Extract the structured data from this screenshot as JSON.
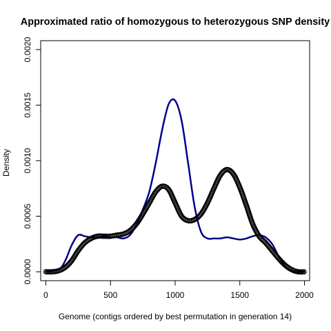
{
  "chart_data": {
    "type": "line",
    "title": "Approximated ratio of homozygous to heterozygous SNP density",
    "xlabel": "Genome (contigs ordered by best permutation in generation 14)",
    "ylabel": "Density",
    "xlim": [
      -40,
      2040
    ],
    "ylim": [
      -8e-05,
      0.00208
    ],
    "x_ticks": [
      0,
      500,
      1000,
      1500,
      2000
    ],
    "x_tick_labels": [
      "0",
      "500",
      "1000",
      "1500",
      "2000"
    ],
    "y_ticks": [
      0.0,
      0.0005,
      0.001,
      0.0015,
      0.002
    ],
    "y_tick_labels": [
      "0.0000",
      "0.0005",
      "0.0010",
      "0.0015",
      "0.0020"
    ],
    "grid": false,
    "series": [
      {
        "style": "line",
        "color": "#00008b",
        "x": [
          0,
          100,
          150,
          200,
          250,
          300,
          350,
          400,
          450,
          500,
          550,
          600,
          650,
          700,
          750,
          800,
          850,
          900,
          950,
          1000,
          1050,
          1100,
          1150,
          1200,
          1250,
          1300,
          1350,
          1400,
          1450,
          1500,
          1550,
          1600,
          1650,
          1700,
          1750,
          1800,
          1850,
          1900,
          1950,
          2000
        ],
        "y": [
          0.0,
          2e-05,
          0.0001,
          0.00024,
          0.00033,
          0.00032,
          0.00031,
          0.00031,
          0.00032,
          0.00031,
          0.00031,
          0.0003,
          0.00033,
          0.00042,
          0.00056,
          0.00072,
          0.00098,
          0.00128,
          0.00151,
          0.00154,
          0.00136,
          0.00098,
          0.00059,
          0.00036,
          0.0003,
          0.0003,
          0.0003,
          0.00031,
          0.0003,
          0.00029,
          0.0003,
          0.00032,
          0.00033,
          0.00031,
          0.00025,
          0.00014,
          5e-05,
          1e-05,
          0.0,
          0.0
        ]
      },
      {
        "style": "points",
        "color": "#000000",
        "x": [
          0,
          50,
          100,
          150,
          200,
          250,
          300,
          350,
          400,
          450,
          500,
          550,
          600,
          650,
          700,
          750,
          800,
          850,
          900,
          950,
          1000,
          1050,
          1100,
          1150,
          1200,
          1250,
          1300,
          1350,
          1400,
          1450,
          1500,
          1550,
          1600,
          1650,
          1700,
          1750,
          1800,
          1850,
          1900,
          1950,
          2000
        ],
        "y": [
          0.0,
          0.0,
          1e-05,
          4e-05,
          0.0001,
          0.00019,
          0.00026,
          0.0003,
          0.00032,
          0.00032,
          0.00032,
          0.00033,
          0.00034,
          0.00037,
          0.00043,
          0.00052,
          0.00062,
          0.00072,
          0.00077,
          0.00074,
          0.00062,
          0.0005,
          0.00046,
          0.00047,
          0.00052,
          0.00062,
          0.00075,
          0.00087,
          0.00092,
          0.00088,
          0.00076,
          0.0006,
          0.00043,
          0.00032,
          0.00026,
          0.00019,
          0.00012,
          6e-05,
          2e-05,
          0.0,
          0.0
        ]
      }
    ]
  }
}
